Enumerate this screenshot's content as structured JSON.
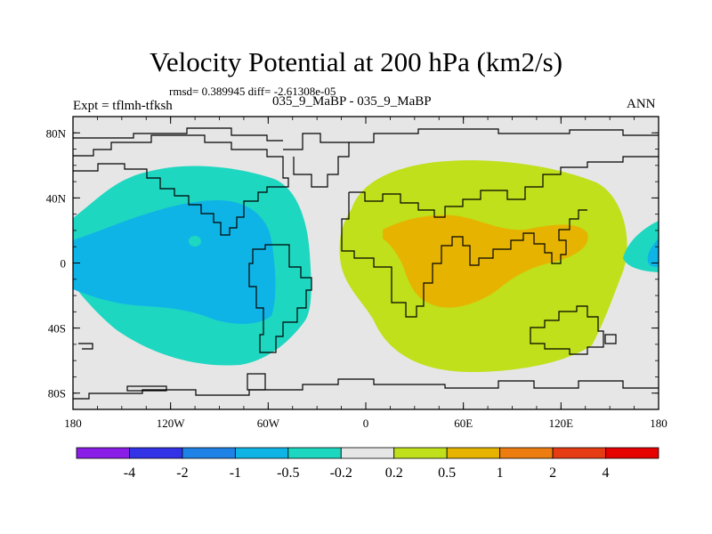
{
  "chart_data": {
    "type": "contour-map",
    "title": "Velocity Potential at 200 hPa (km2/s)",
    "stats_line": "rmsd= 0.389945 diff= -2.61308e-05",
    "left_label": "Expt = tflmh-tfksh",
    "center_label": "035_9_MaBP - 035_9_MaBP",
    "right_label": "ANN",
    "x_ticks": [
      "180",
      "120W",
      "60W",
      "0",
      "60E",
      "120E",
      "180"
    ],
    "y_ticks": [
      "80N",
      "40N",
      "0",
      "40S",
      "80S"
    ],
    "xlim": [
      -180,
      180
    ],
    "ylim": [
      -90,
      90
    ],
    "colorbar": {
      "levels": [
        "-4",
        "-2",
        "-1",
        "-0.5",
        "-0.2",
        "0.2",
        "0.5",
        "1",
        "2",
        "4"
      ],
      "colors": [
        "#8a1ee6",
        "#3232e6",
        "#1e82e6",
        "#0fb4e6",
        "#1ed7c0",
        "#e6e6e6",
        "#bfe01a",
        "#e6b400",
        "#ee7d10",
        "#e63c14",
        "#e60000"
      ]
    },
    "regions": [
      {
        "name": "western-hemisphere-negative",
        "level": "-0.5 to -0.2",
        "color": "#1ed7c0"
      },
      {
        "name": "western-hemisphere-core",
        "level": "-1 to -0.5",
        "color": "#0fb4e6"
      },
      {
        "name": "eastern-hemisphere-positive",
        "level": "0.2 to 0.5",
        "color": "#bfe01a"
      },
      {
        "name": "eastern-hemisphere-core",
        "level": "0.5 to 1",
        "color": "#e6b400"
      }
    ]
  }
}
